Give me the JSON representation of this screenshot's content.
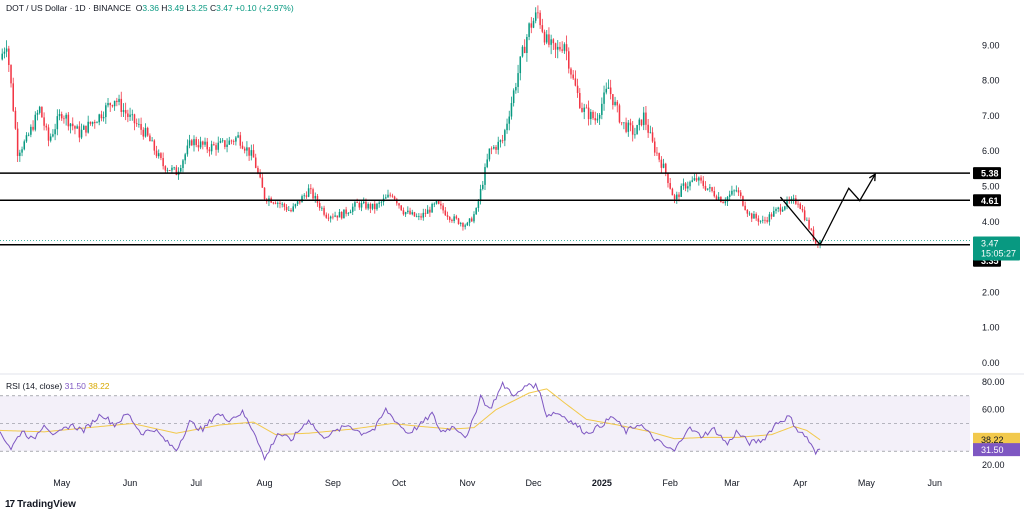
{
  "header": {
    "symbol": "DOT / US Dollar · 1D · BINANCE",
    "o_label": "O",
    "o": "3.36",
    "h_label": "H",
    "h": "3.49",
    "l_label": "L",
    "l": "3.25",
    "c_label": "C",
    "c": "3.47",
    "change": "+0.10 (+2.97%)"
  },
  "rsi_label": {
    "name": "RSI (14, close)",
    "value": "31.50",
    "ma": "38.22"
  },
  "logo": {
    "text": "TradingView",
    "icon": "tradingview-logo-icon"
  },
  "colors": {
    "up": "#089981",
    "down": "#f23645",
    "rsi": "#7e57c2",
    "rsi_ma": "#f2c94c",
    "line": "#000000",
    "grid": "#787b86"
  },
  "chart_data": [
    {
      "type": "candlestick",
      "title": "DOT / US Dollar · 1D · BINANCE",
      "ylim": [
        0,
        10
      ],
      "yticks": [
        "9.00",
        "8.00",
        "7.00",
        "6.00",
        "5.00",
        "4.00",
        "2.00",
        "1.00",
        "0.00"
      ],
      "ytick_values": [
        9,
        8,
        7,
        6,
        5,
        4,
        2,
        1,
        0
      ],
      "xticks": [
        "May",
        "Jun",
        "Jul",
        "Aug",
        "Sep",
        "Oct",
        "Nov",
        "Dec",
        "2025",
        "Feb",
        "Mar",
        "Apr",
        "May",
        "Jun"
      ],
      "xtick_days": [
        28,
        59,
        89,
        120,
        151,
        181,
        212,
        242,
        273,
        304,
        332,
        363,
        393,
        424
      ],
      "days_visible": [
        0,
        440
      ],
      "price_keyframes": [
        [
          0,
          8.6
        ],
        [
          3,
          9.1
        ],
        [
          8,
          6.0
        ],
        [
          12,
          6.3
        ],
        [
          18,
          7.2
        ],
        [
          22,
          6.3
        ],
        [
          28,
          7.1
        ],
        [
          36,
          6.5
        ],
        [
          45,
          7.0
        ],
        [
          52,
          7.5
        ],
        [
          58,
          7.0
        ],
        [
          66,
          6.5
        ],
        [
          74,
          5.6
        ],
        [
          80,
          5.4
        ],
        [
          87,
          6.3
        ],
        [
          94,
          6.1
        ],
        [
          102,
          6.2
        ],
        [
          108,
          6.4
        ],
        [
          115,
          5.8
        ],
        [
          120,
          4.7
        ],
        [
          125,
          4.6
        ],
        [
          132,
          4.3
        ],
        [
          140,
          4.9
        ],
        [
          148,
          4.2
        ],
        [
          155,
          4.2
        ],
        [
          162,
          4.5
        ],
        [
          170,
          4.4
        ],
        [
          178,
          4.8
        ],
        [
          183,
          4.3
        ],
        [
          190,
          4.1
        ],
        [
          198,
          4.5
        ],
        [
          205,
          4.1
        ],
        [
          212,
          3.9
        ],
        [
          216,
          4.3
        ],
        [
          222,
          6.0
        ],
        [
          228,
          6.3
        ],
        [
          232,
          7.4
        ],
        [
          236,
          8.5
        ],
        [
          240,
          9.5
        ],
        [
          244,
          9.9
        ],
        [
          248,
          9.1
        ],
        [
          252,
          8.8
        ],
        [
          256,
          9.1
        ],
        [
          260,
          8.0
        ],
        [
          264,
          7.2
        ],
        [
          270,
          6.9
        ],
        [
          276,
          7.8
        ],
        [
          282,
          6.8
        ],
        [
          288,
          6.5
        ],
        [
          292,
          7.0
        ],
        [
          296,
          6.2
        ],
        [
          302,
          5.4
        ],
        [
          306,
          4.6
        ],
        [
          310,
          5.0
        ],
        [
          316,
          5.2
        ],
        [
          322,
          4.9
        ],
        [
          328,
          4.6
        ],
        [
          334,
          4.9
        ],
        [
          340,
          4.2
        ],
        [
          346,
          4.0
        ],
        [
          350,
          4.2
        ],
        [
          356,
          4.5
        ],
        [
          362,
          4.6
        ],
        [
          366,
          4.0
        ],
        [
          370,
          3.4
        ],
        [
          372,
          3.47
        ]
      ],
      "current_price": "3.47",
      "countdown": "15:05:27",
      "levels": [
        {
          "label": "5.38",
          "value": 5.38
        },
        {
          "label": "4.61",
          "value": 4.61
        },
        {
          "label": "3.35",
          "value": 3.35
        }
      ],
      "projection": [
        [
          354,
          4.7
        ],
        [
          372,
          3.35
        ],
        [
          385,
          4.95
        ],
        [
          390,
          4.6
        ],
        [
          397,
          5.35
        ]
      ]
    },
    {
      "type": "line",
      "title": "RSI (14, close)",
      "ylim": [
        15,
        85
      ],
      "yticks": [
        "80.00",
        "60.00",
        "20.00"
      ],
      "ytick_values": [
        80,
        60,
        20
      ],
      "band": [
        30,
        70
      ],
      "last_values": {
        "rsi": "31.50",
        "ma": "38.22"
      },
      "series": [
        {
          "name": "RSI",
          "keyframes": [
            [
              0,
              44
            ],
            [
              5,
              32
            ],
            [
              10,
              45
            ],
            [
              15,
              38
            ],
            [
              20,
              50
            ],
            [
              25,
              41
            ],
            [
              32,
              49
            ],
            [
              38,
              45
            ],
            [
              46,
              57
            ],
            [
              52,
              49
            ],
            [
              58,
              57
            ],
            [
              64,
              43
            ],
            [
              70,
              46
            ],
            [
              76,
              36
            ],
            [
              80,
              31
            ],
            [
              86,
              51
            ],
            [
              92,
              45
            ],
            [
              98,
              57
            ],
            [
              104,
              53
            ],
            [
              110,
              58
            ],
            [
              116,
              42
            ],
            [
              120,
              24
            ],
            [
              126,
              43
            ],
            [
              132,
              38
            ],
            [
              140,
              53
            ],
            [
              146,
              40
            ],
            [
              152,
              44
            ],
            [
              158,
              49
            ],
            [
              164,
              43
            ],
            [
              170,
              46
            ],
            [
              175,
              60
            ],
            [
              180,
              51
            ],
            [
              185,
              43
            ],
            [
              190,
              48
            ],
            [
              196,
              57
            ],
            [
              200,
              44
            ],
            [
              206,
              48
            ],
            [
              212,
              40
            ],
            [
              218,
              70
            ],
            [
              222,
              60
            ],
            [
              228,
              78
            ],
            [
              234,
              70
            ],
            [
              240,
              79
            ],
            [
              244,
              76
            ],
            [
              248,
              56
            ],
            [
              252,
              58
            ],
            [
              256,
              55
            ],
            [
              262,
              48
            ],
            [
              266,
              43
            ],
            [
              272,
              48
            ],
            [
              278,
              55
            ],
            [
              284,
              44
            ],
            [
              290,
              50
            ],
            [
              296,
              40
            ],
            [
              302,
              33
            ],
            [
              306,
              30
            ],
            [
              312,
              47
            ],
            [
              318,
              41
            ],
            [
              324,
              46
            ],
            [
              330,
              35
            ],
            [
              334,
              44
            ],
            [
              340,
              36
            ],
            [
              346,
              38
            ],
            [
              352,
              50
            ],
            [
              358,
              55
            ],
            [
              362,
              45
            ],
            [
              366,
              40
            ],
            [
              370,
              28
            ],
            [
              372,
              31.5
            ]
          ]
        },
        {
          "name": "RSI MA",
          "keyframes": [
            [
              0,
              45
            ],
            [
              20,
              44
            ],
            [
              40,
              47
            ],
            [
              60,
              50
            ],
            [
              80,
              43
            ],
            [
              100,
              49
            ],
            [
              115,
              51
            ],
            [
              125,
              42
            ],
            [
              140,
              43
            ],
            [
              160,
              46
            ],
            [
              178,
              50
            ],
            [
              190,
              48
            ],
            [
              205,
              46
            ],
            [
              215,
              47
            ],
            [
              225,
              60
            ],
            [
              240,
              72
            ],
            [
              248,
              75
            ],
            [
              256,
              65
            ],
            [
              266,
              53
            ],
            [
              280,
              49
            ],
            [
              295,
              44
            ],
            [
              306,
              39
            ],
            [
              320,
              40
            ],
            [
              335,
              40
            ],
            [
              350,
              42
            ],
            [
              360,
              48
            ],
            [
              366,
              45
            ],
            [
              372,
              38.22
            ]
          ]
        }
      ]
    }
  ]
}
